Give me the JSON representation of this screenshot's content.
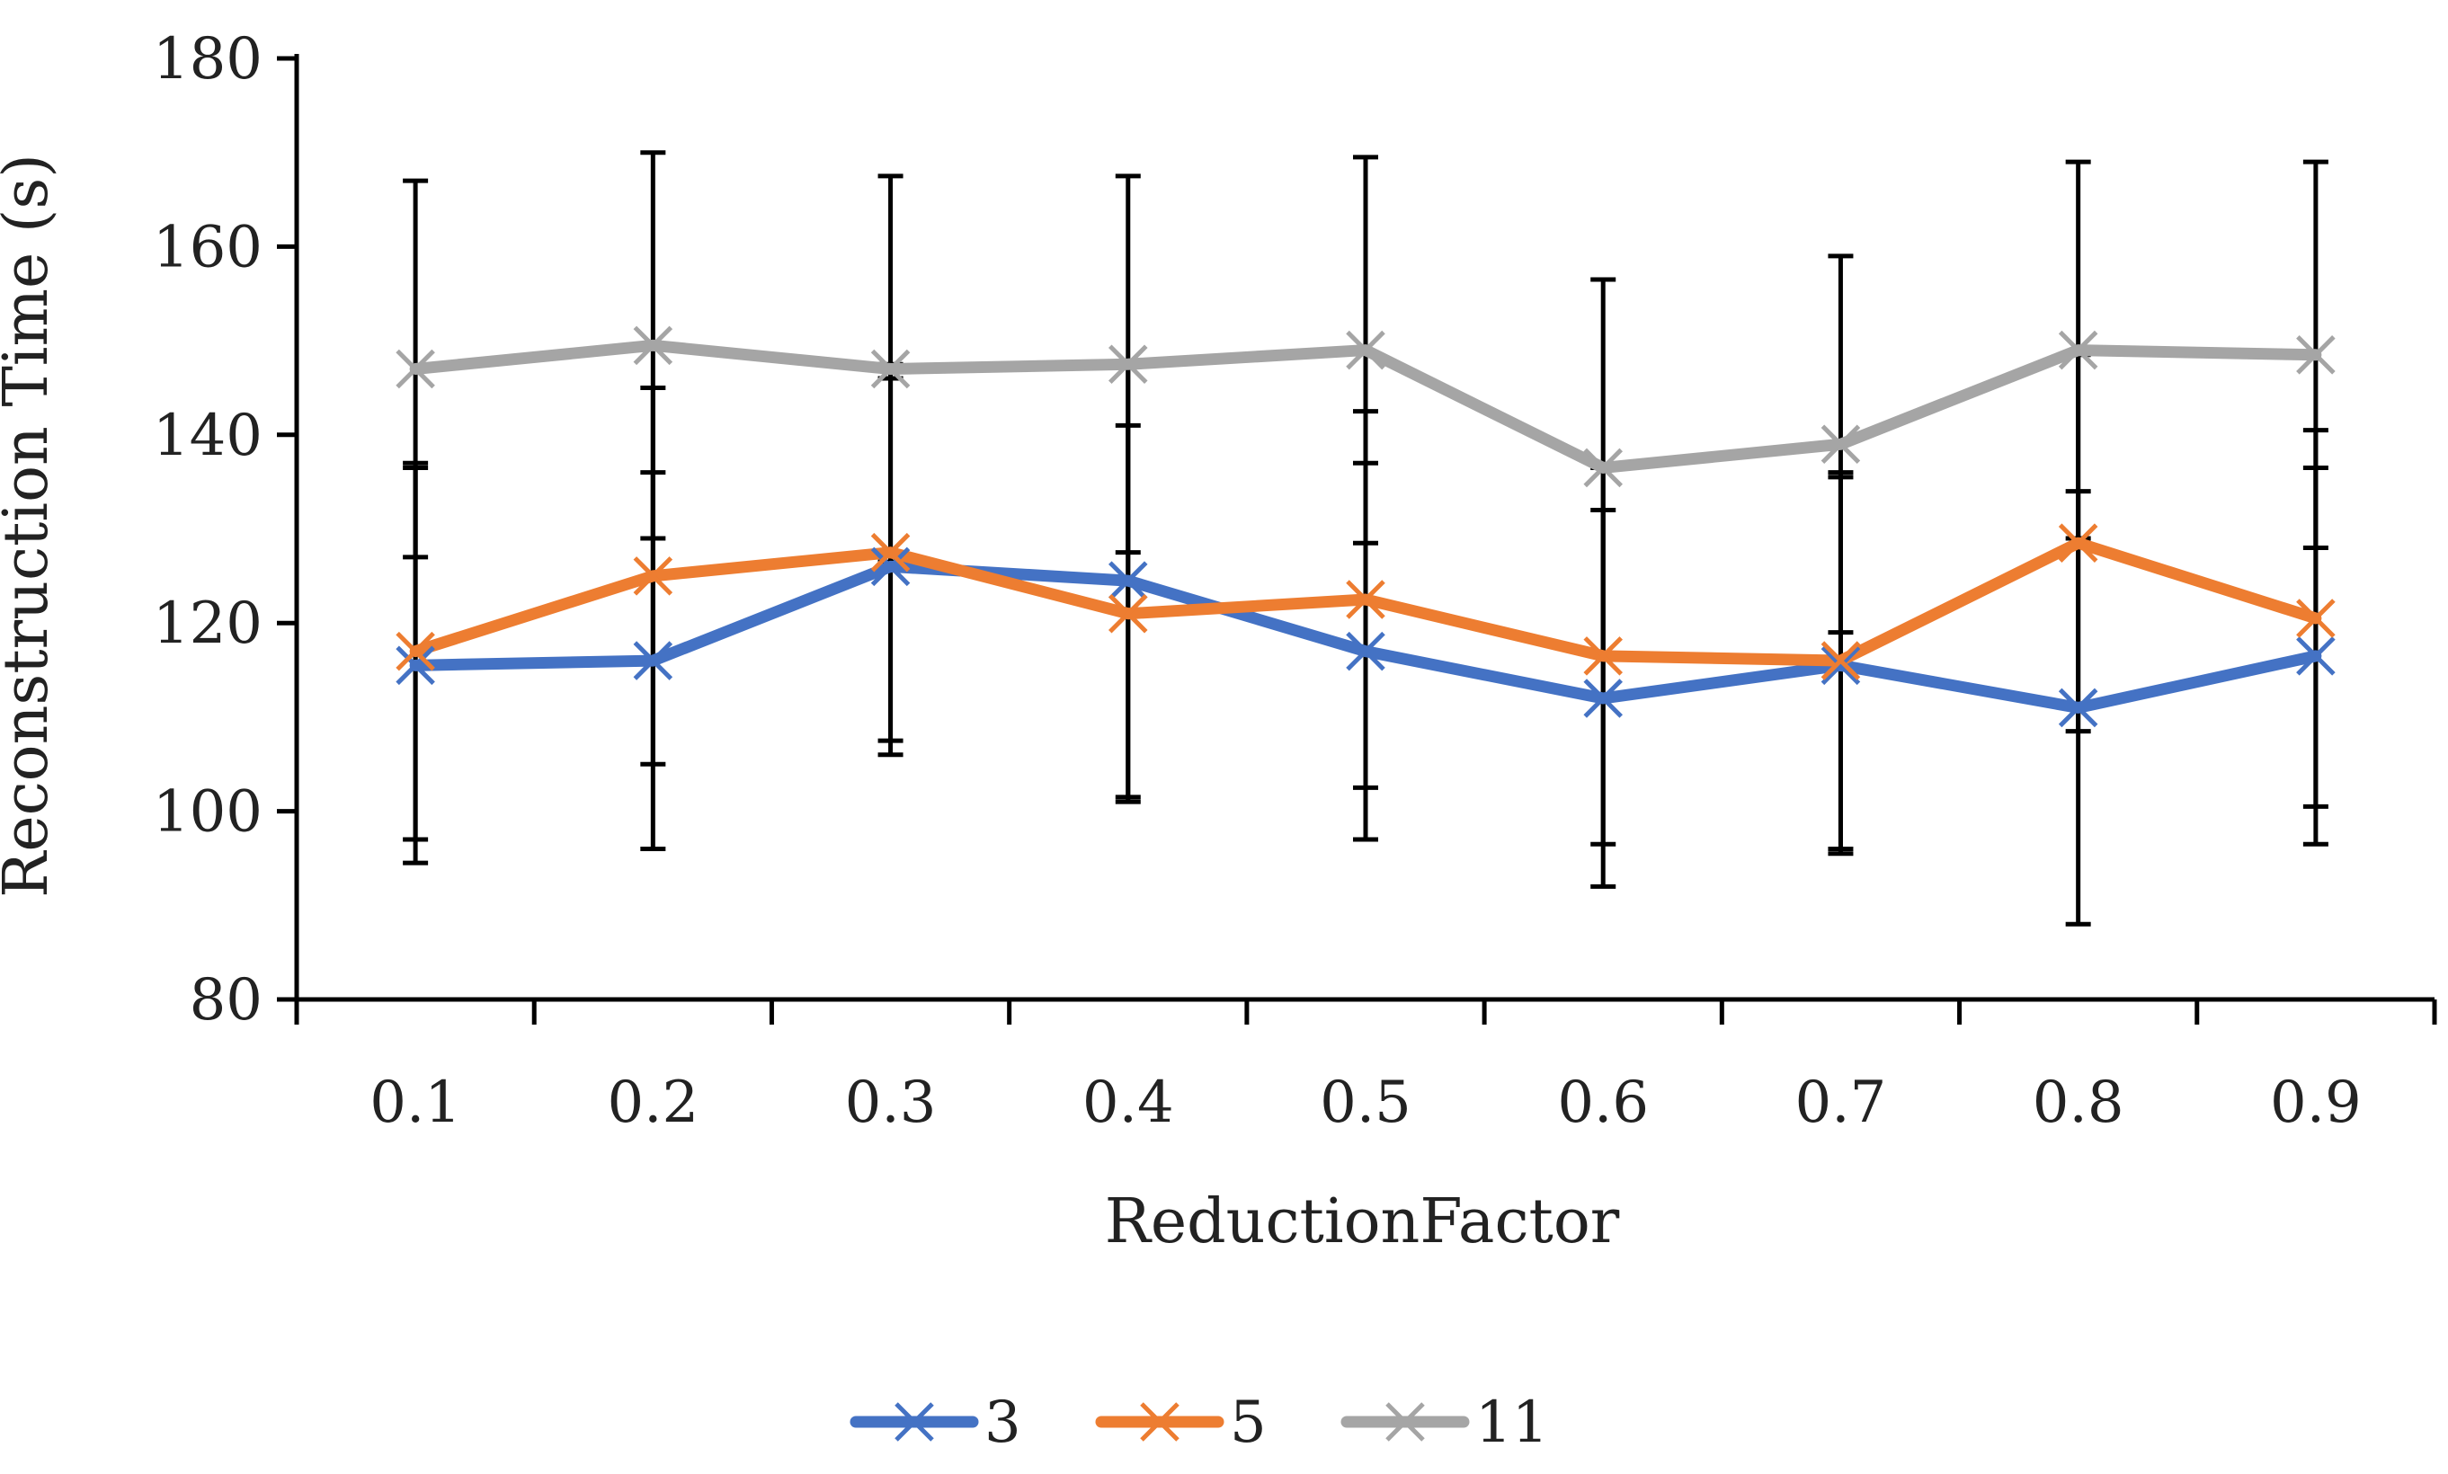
{
  "chart_data": {
    "type": "line",
    "title": "",
    "xlabel": "ReductionFactor",
    "ylabel": "Reconstruction Time (s)",
    "categories": [
      "0.1",
      "0.2",
      "0.3",
      "0.4",
      "0.5",
      "0.6",
      "0.7",
      "0.8",
      "0.9"
    ],
    "ylim": [
      80,
      180
    ],
    "yticks": [
      "80",
      "100",
      "120",
      "140",
      "160",
      "180"
    ],
    "grid": false,
    "legend_position": "bottom",
    "error_bars": true,
    "marker": "x",
    "series": [
      {
        "name": "3",
        "color": "#4472C4",
        "values": [
          115.5,
          116,
          126,
          124.5,
          117,
          112,
          115.5,
          111,
          116.5
        ],
        "errors": [
          21,
          20,
          20,
          23,
          20,
          20,
          20,
          23,
          20
        ]
      },
      {
        "name": "5",
        "color": "#ED7D31",
        "values": [
          117,
          125,
          127.5,
          121,
          122.5,
          116.5,
          116,
          128.5,
          120.5
        ],
        "errors": [
          20,
          20,
          20,
          20,
          20,
          20,
          20,
          20,
          20
        ]
      },
      {
        "name": "11",
        "color": "#A5A5A5",
        "values": [
          147,
          149.5,
          147,
          147.5,
          149,
          136.5,
          139,
          149,
          148.5
        ],
        "errors": [
          20,
          20.5,
          20.5,
          20,
          20.5,
          20,
          20,
          20,
          20.5
        ]
      }
    ]
  }
}
